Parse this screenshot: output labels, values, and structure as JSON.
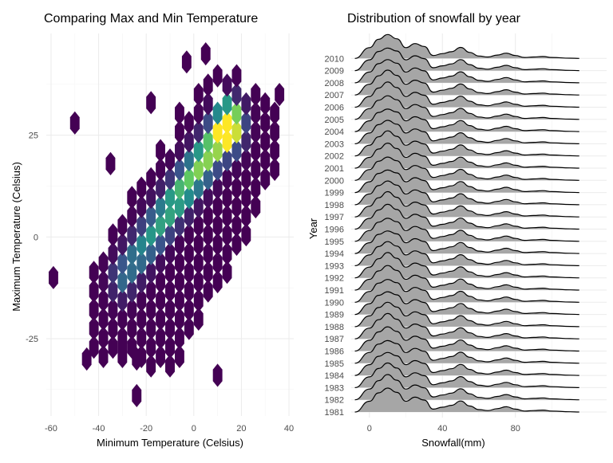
{
  "chart_data": [
    {
      "type": "heatmap",
      "subtype": "hexbin",
      "title": "Comparing Max and Min Temperature",
      "xlabel": "Minimum Temperature (Celsius)",
      "ylabel": "Maximum Temperature (Celsius)",
      "xlim": [
        -62,
        42
      ],
      "ylim": [
        -44,
        50
      ],
      "x_ticks": [
        -60,
        -40,
        -20,
        0,
        20,
        40
      ],
      "x_tick_labels": [
        "-60",
        "-40",
        "-20",
        "0",
        "20",
        "40"
      ],
      "y_ticks": [
        -25,
        0,
        25
      ],
      "y_tick_labels": [
        "-25",
        "0",
        "25"
      ],
      "grid": true,
      "colormap": [
        "#440154",
        "#3b528b",
        "#21918c",
        "#5ec962",
        "#fde725"
      ],
      "density_ridge": {
        "from": [
          -30,
          -10
        ],
        "to": [
          15,
          28
        ],
        "peak": [
          15,
          27
        ]
      },
      "outliers": [
        [
          -50,
          28
        ],
        [
          -59,
          -10
        ],
        [
          -24,
          -39
        ],
        [
          -3,
          43
        ],
        [
          -18,
          33
        ],
        [
          5,
          45
        ],
        [
          -35,
          18
        ],
        [
          36,
          35
        ],
        [
          -45,
          -30
        ],
        [
          -30,
          -27
        ],
        [
          10,
          -34
        ],
        [
          -24,
          -30
        ]
      ]
    },
    {
      "type": "area",
      "subtype": "ridgeline",
      "title": "Distribution of snowfall by year",
      "xlabel": "Snowfall(mm)",
      "ylabel": "Year",
      "xlim": [
        -10,
        130
      ],
      "x_ticks": [
        0,
        40,
        80
      ],
      "x_tick_labels": [
        "0",
        "40",
        "80"
      ],
      "categories": [
        "1981",
        "1982",
        "1983",
        "1984",
        "1985",
        "1986",
        "1987",
        "1988",
        "1989",
        "1990",
        "1991",
        "1992",
        "1993",
        "1994",
        "1995",
        "1996",
        "1997",
        "1998",
        "1999",
        "2000",
        "2001",
        "2002",
        "2003",
        "2004",
        "2005",
        "2006",
        "2007",
        "2008",
        "2009",
        "2010"
      ],
      "density_x": [
        -8,
        0,
        5,
        10,
        15,
        20,
        25,
        30,
        35,
        40,
        45,
        50,
        55,
        60,
        65,
        70,
        75,
        80,
        85,
        90,
        95,
        100,
        110,
        115
      ],
      "density_y": [
        0,
        0.45,
        0.8,
        1.0,
        0.82,
        0.45,
        0.62,
        0.5,
        0.12,
        0.2,
        0.28,
        0.46,
        0.25,
        0.1,
        0.06,
        0.14,
        0.22,
        0.12,
        0.04,
        0.06,
        0.08,
        0.04,
        0.01,
        0
      ],
      "fill_color": "#a6a6a6",
      "line_color": "#000000",
      "grid": true
    }
  ]
}
